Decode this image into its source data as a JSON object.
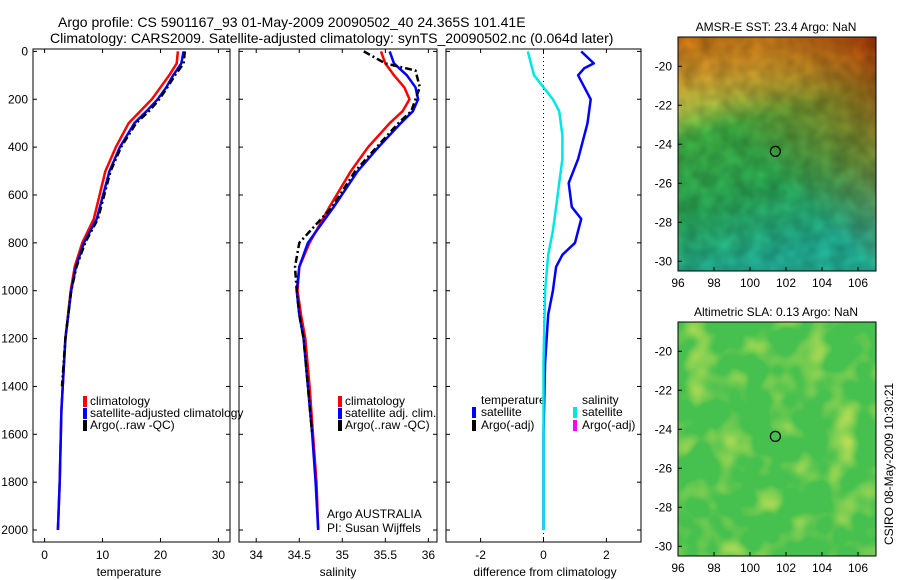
{
  "header": {
    "line1": "Argo profile: CS 5901167_93 01-May-2009 20090502_40 24.365S 101.41E",
    "line2": "Climatology: CARS2009. Satellite-adjusted climatology: synTS_20090502.nc (0.064d later)"
  },
  "footer_stamp": "CSIRO 08-May-2009 10:30:21",
  "colors": {
    "climatology": "#ff0000",
    "satellite": "#0000ff",
    "argo": "#000000",
    "satellite_sal_diff": "#00e5e5",
    "argo_sal_diff": "#ff00ff",
    "zero_line": "#000000"
  },
  "chart_data": [
    {
      "id": "temperature",
      "type": "line",
      "xlabel": "temperature",
      "ylabel": "",
      "xlim": [
        -2,
        32
      ],
      "ylim": [
        2050,
        -10
      ],
      "xticks": [
        0,
        10,
        20,
        30
      ],
      "yticks": [
        0,
        200,
        400,
        600,
        800,
        1000,
        1200,
        1400,
        1600,
        1800,
        2000
      ],
      "legend": {
        "placement": "lower-right",
        "entries": [
          "climatology",
          "satellite-adjusted climatology",
          "Argo(..raw -QC)"
        ]
      },
      "series": [
        {
          "name": "climatology",
          "color": "#ff0000",
          "style": "solid",
          "x": [
            23.0,
            22.8,
            21.5,
            20.0,
            18.5,
            16.5,
            14.5,
            12.3,
            10.5,
            8.5,
            6.5,
            5.2,
            4.5,
            3.6,
            2.9,
            2.6,
            2.3
          ],
          "y": [
            0,
            50,
            100,
            150,
            200,
            250,
            300,
            400,
            500,
            700,
            800,
            900,
            1000,
            1200,
            1500,
            1800,
            2000
          ]
        },
        {
          "name": "satellite-adjusted climatology",
          "color": "#0000ff",
          "style": "solid",
          "x": [
            24.0,
            23.6,
            22.2,
            21.0,
            19.5,
            17.6,
            15.5,
            13.0,
            11.2,
            9.0,
            6.8,
            5.4,
            4.6,
            3.6,
            2.9,
            2.6,
            2.3
          ],
          "y": [
            0,
            50,
            100,
            150,
            200,
            250,
            300,
            400,
            500,
            700,
            800,
            900,
            1000,
            1200,
            1500,
            1800,
            2000
          ]
        },
        {
          "name": "Argo(..raw -QC)",
          "color": "#000000",
          "style": "dashdot",
          "x": [
            24.2,
            24.0,
            22.5,
            21.2,
            19.8,
            18.0,
            15.8,
            13.2,
            11.4,
            9.2,
            7.0,
            5.5,
            4.6,
            3.6,
            3.0
          ],
          "y": [
            0,
            50,
            100,
            150,
            200,
            250,
            300,
            400,
            500,
            700,
            800,
            900,
            1000,
            1200,
            1400
          ]
        }
      ]
    },
    {
      "id": "salinity",
      "type": "line",
      "xlabel": "salinity",
      "ylabel": "",
      "xlim": [
        33.8,
        36.1
      ],
      "ylim": [
        2050,
        -10
      ],
      "xticks": [
        34,
        34.5,
        35,
        35.5,
        36
      ],
      "yticks": [
        0,
        200,
        400,
        600,
        800,
        1000,
        1200,
        1400,
        1600,
        1800,
        2000
      ],
      "legend": {
        "placement": "lower-right",
        "entries": [
          "climatology",
          "satellite adj. clim.",
          "Argo(..raw -QC)"
        ]
      },
      "annotations": [
        "Argo AUSTRALIA",
        "PI: Susan Wijffels"
      ],
      "series": [
        {
          "name": "climatology",
          "color": "#ff0000",
          "style": "solid",
          "x": [
            35.45,
            35.5,
            35.6,
            35.72,
            35.78,
            35.7,
            35.55,
            35.3,
            35.1,
            34.85,
            34.62,
            34.5,
            34.48,
            34.52,
            34.57,
            34.62,
            34.66,
            34.7,
            34.72
          ],
          "y": [
            0,
            50,
            100,
            150,
            200,
            250,
            300,
            400,
            500,
            650,
            800,
            900,
            1000,
            1100,
            1200,
            1400,
            1600,
            1800,
            2000
          ]
        },
        {
          "name": "satellite adj. clim.",
          "color": "#0000ff",
          "style": "solid",
          "x": [
            35.55,
            35.6,
            35.75,
            35.85,
            35.88,
            35.82,
            35.68,
            35.42,
            35.18,
            34.9,
            34.6,
            34.5,
            34.47,
            34.5,
            34.55,
            34.6,
            34.65,
            34.69,
            34.72
          ],
          "y": [
            0,
            50,
            100,
            150,
            200,
            250,
            300,
            400,
            500,
            650,
            800,
            900,
            1000,
            1100,
            1200,
            1400,
            1600,
            1800,
            2000
          ]
        },
        {
          "name": "Argo(..raw -QC)",
          "color": "#000000",
          "style": "dashdot",
          "x": [
            35.25,
            35.5,
            35.85,
            35.9,
            35.85,
            35.8,
            35.65,
            35.4,
            35.15,
            34.88,
            34.5,
            34.45,
            34.47,
            34.5,
            34.55,
            34.6,
            34.65
          ],
          "y": [
            0,
            50,
            80,
            150,
            200,
            250,
            300,
            400,
            500,
            650,
            800,
            900,
            1000,
            1100,
            1200,
            1400,
            1600
          ]
        }
      ]
    },
    {
      "id": "difference",
      "type": "line",
      "xlabel": "difference from climatology",
      "ylabel": "",
      "xlim": [
        -3.1,
        3.1
      ],
      "ylim": [
        2050,
        -10
      ],
      "xticks": [
        -2,
        0,
        2
      ],
      "yticks": [
        0,
        200,
        400,
        600,
        800,
        1000,
        1200,
        1400,
        1600,
        1800,
        2000
      ],
      "legend": {
        "placement": "lower-center",
        "groups": [
          {
            "title": "temperature",
            "entries": [
              "satellite",
              "Argo(-adj)"
            ]
          },
          {
            "title": "salinity",
            "entries": [
              "satellite",
              "Argo(-adj)"
            ]
          }
        ]
      },
      "series": [
        {
          "name": "temperature satellite",
          "color": "#0000ff",
          "style": "solid",
          "x": [
            1.2,
            1.6,
            1.3,
            1.1,
            1.3,
            1.5,
            1.4,
            1.1,
            0.8,
            0.9,
            1.2,
            1.0,
            0.6,
            0.4,
            0.3,
            0.15,
            0.05,
            0.0,
            0.0
          ],
          "y": [
            0,
            50,
            70,
            100,
            150,
            200,
            300,
            450,
            550,
            650,
            700,
            800,
            850,
            900,
            1000,
            1100,
            1300,
            1600,
            2000
          ]
        },
        {
          "name": "salinity satellite",
          "color": "#00e5e5",
          "style": "solid",
          "x": [
            -0.5,
            -0.4,
            -0.3,
            0.0,
            0.3,
            0.5,
            0.6,
            0.6,
            0.5,
            0.4,
            0.3,
            0.15,
            0.05,
            0.0,
            0.0
          ],
          "y": [
            0,
            50,
            100,
            150,
            200,
            250,
            350,
            450,
            550,
            650,
            750,
            850,
            1000,
            1300,
            2000
          ]
        }
      ]
    }
  ],
  "maps": [
    {
      "id": "sst-map",
      "title": "AMSR-E SST: 23.4 Argo: NaN",
      "xticks": [
        96,
        98,
        100,
        102,
        104,
        106
      ],
      "yticks": [
        -20,
        -22,
        -24,
        -26,
        -28,
        -30
      ],
      "xlim": [
        96,
        107
      ],
      "ylim": [
        -30.5,
        -18.5
      ],
      "marker": {
        "lon": 101.41,
        "lat": -24.365
      }
    },
    {
      "id": "sla-map",
      "title": "Altimetric SLA: 0.13 Argo: NaN",
      "xticks": [
        96,
        98,
        100,
        102,
        104,
        106
      ],
      "yticks": [
        -20,
        -22,
        -24,
        -26,
        -28,
        -30
      ],
      "xlim": [
        96,
        107
      ],
      "ylim": [
        -30.5,
        -18.5
      ],
      "marker": {
        "lon": 101.41,
        "lat": -24.365
      }
    }
  ]
}
